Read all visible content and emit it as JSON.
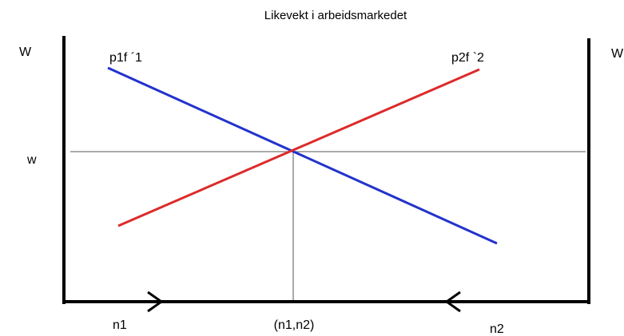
{
  "title": "Likevekt i arbeidsmarkedet",
  "axis_labels": {
    "left": "W",
    "right": "W",
    "wage": "w"
  },
  "curves": {
    "blue": "p1f ´1",
    "red": "p2f `2"
  },
  "bottom_labels": {
    "left": "n1",
    "middle": "(n1,n2)",
    "right": "n2"
  }
}
